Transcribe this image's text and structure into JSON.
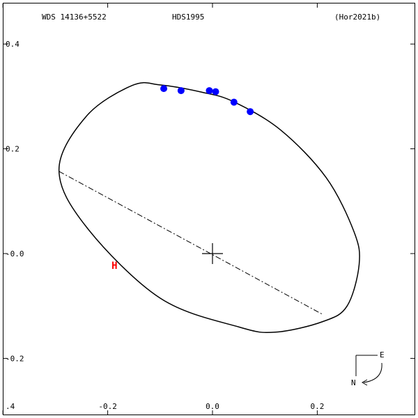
{
  "header": {
    "system": "WDS 14136+5522",
    "discoverer": "HDS1995",
    "reference": "(Hor2021b)"
  },
  "compass": {
    "east_label": "E",
    "north_label": "N"
  },
  "colors": {
    "observations": "#0000ff",
    "reference_mark": "#ff0000",
    "orbit": "#000000"
  },
  "chart_data": {
    "type": "scatter",
    "title": "",
    "xlabel": "",
    "ylabel": "",
    "xlim": [
      -0.4,
      0.4
    ],
    "ylim": [
      -0.4,
      0.4
    ],
    "grid": false,
    "x_ticks": [
      {
        "value": -0.4,
        "label": ".4"
      },
      {
        "value": -0.2,
        "label": "-0.2"
      },
      {
        "value": 0.0,
        "label": "0.0"
      },
      {
        "value": 0.2,
        "label": "0.2"
      }
    ],
    "y_ticks": [
      {
        "value": 0.4,
        "label": "0.4"
      },
      {
        "value": 0.2,
        "label": "0.2"
      },
      {
        "value": 0.0,
        "label": "-0.0"
      },
      {
        "value": -0.2,
        "label": "-0.2"
      }
    ],
    "orbit_ellipse": {
      "center": [
        0.0,
        0.0
      ],
      "points": [
        [
          -0.293,
          0.16
        ],
        [
          -0.24,
          0.263
        ],
        [
          -0.153,
          0.321
        ],
        [
          -0.1,
          0.322
        ],
        [
          -0.02,
          0.308
        ],
        [
          0.04,
          0.29
        ],
        [
          0.13,
          0.236
        ],
        [
          0.217,
          0.145
        ],
        [
          0.27,
          0.042
        ],
        [
          0.28,
          -0.02
        ],
        [
          0.257,
          -0.1
        ],
        [
          0.21,
          -0.13
        ],
        [
          0.12,
          -0.15
        ],
        [
          0.05,
          -0.14
        ],
        [
          -0.1,
          -0.085
        ],
        [
          -0.24,
          0.05
        ],
        [
          -0.293,
          0.16
        ]
      ]
    },
    "line_of_nodes": [
      [
        -0.293,
        0.157
      ],
      [
        0.21,
        -0.116
      ]
    ],
    "primary_marker": [
      0.0,
      0.0
    ],
    "series": [
      {
        "marker": "circle",
        "points": [
          {
            "x": -0.093,
            "y": 0.315
          },
          {
            "x": -0.06,
            "y": 0.311
          },
          {
            "x": -0.006,
            "y": 0.311
          },
          {
            "x": 0.006,
            "y": 0.309
          },
          {
            "x": 0.041,
            "y": 0.289
          },
          {
            "x": 0.072,
            "y": 0.271
          }
        ]
      },
      {
        "marker": "H",
        "label": "H",
        "points": [
          {
            "x": -0.187,
            "y": -0.021
          }
        ]
      }
    ]
  }
}
